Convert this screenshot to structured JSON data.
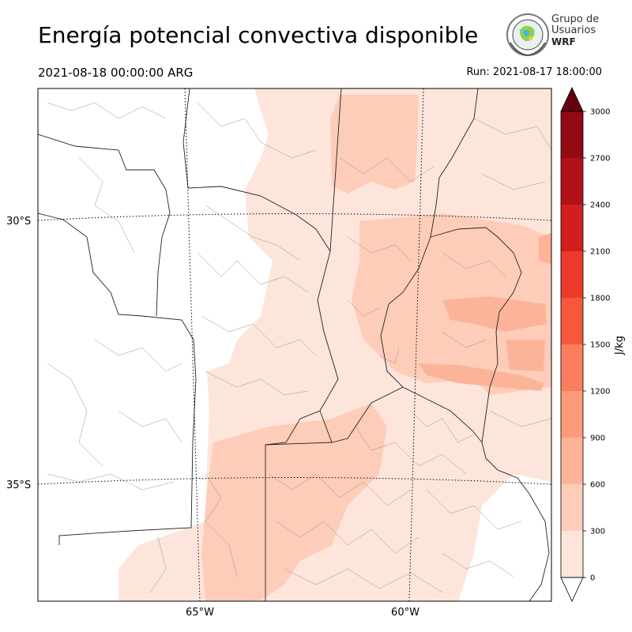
{
  "header": {
    "title": "Energía potencial convectiva disponible",
    "valid_time": "2021-08-18 00:00:00 ARG",
    "run_time": "Run: 2021-08-17 18:00:00"
  },
  "logo": {
    "line1": "Grupo de",
    "line2": "Usuarios",
    "line3": "WRF"
  },
  "map": {
    "lat_labels": [
      "30°S",
      "35°S"
    ],
    "lon_labels": [
      "65°W",
      "60°W"
    ]
  },
  "colorbar": {
    "unit": "J/kg",
    "levels": [
      0,
      300,
      600,
      900,
      1200,
      1500,
      1800,
      2100,
      2400,
      2700,
      3000
    ],
    "tick_labels": [
      "0",
      "300",
      "600",
      "900",
      "1200",
      "1500",
      "1800",
      "2100",
      "2400",
      "2700",
      "3000"
    ],
    "colors": [
      "#fee5dc",
      "#fdcdb9",
      "#fcb499",
      "#fc9b7a",
      "#fb7d5d",
      "#f6583e",
      "#eb3a2b",
      "#d11f1f",
      "#b11218",
      "#920a12",
      "#6d0a0f"
    ],
    "under_color": "#ffffff",
    "over_color": "#67000d"
  }
}
